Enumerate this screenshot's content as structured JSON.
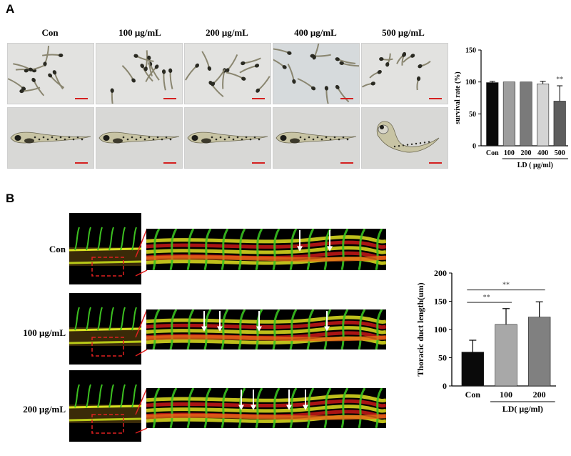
{
  "panelA": {
    "letter": "A",
    "columns": [
      "Con",
      "100 μg/mL",
      "200 μg/mL",
      "400 μg/mL",
      "500 μg/mL"
    ]
  },
  "panelB": {
    "letter": "B",
    "rows": [
      "Con",
      "100 μg/mL",
      "200 μg/mL"
    ]
  },
  "chart_data": [
    {
      "type": "bar",
      "categories": [
        "Con",
        "100",
        "200",
        "400",
        "500"
      ],
      "values": [
        99,
        100,
        100,
        97,
        70
      ],
      "errors": [
        2,
        0,
        0,
        4,
        24
      ],
      "ylabel": "survival rate (%)",
      "xlabel": "LD ( μg/ml)",
      "ylim": [
        0,
        150
      ],
      "yticks": [
        0,
        50,
        100,
        150
      ],
      "significance": [
        "",
        "",
        "",
        "",
        "**"
      ],
      "colors": [
        "#0a0a0a",
        "#9e9e9e",
        "#7a7a7a",
        "#d4d4d4",
        "#5e5e5e"
      ]
    },
    {
      "type": "bar",
      "categories": [
        "Con",
        "100",
        "200"
      ],
      "values": [
        60,
        109,
        122
      ],
      "errors": [
        21,
        28,
        27
      ],
      "ylabel": "Thoracic duct length(um)",
      "xlabel": "LD( μg/ml)",
      "ylim": [
        0,
        200
      ],
      "yticks": [
        0,
        50,
        100,
        150,
        200
      ],
      "comparisons": [
        {
          "from": "Con",
          "to": "100",
          "label": "**"
        },
        {
          "from": "Con",
          "to": "200",
          "label": "**"
        }
      ],
      "colors": [
        "#0a0a0a",
        "#a8a8a8",
        "#808080"
      ]
    }
  ]
}
